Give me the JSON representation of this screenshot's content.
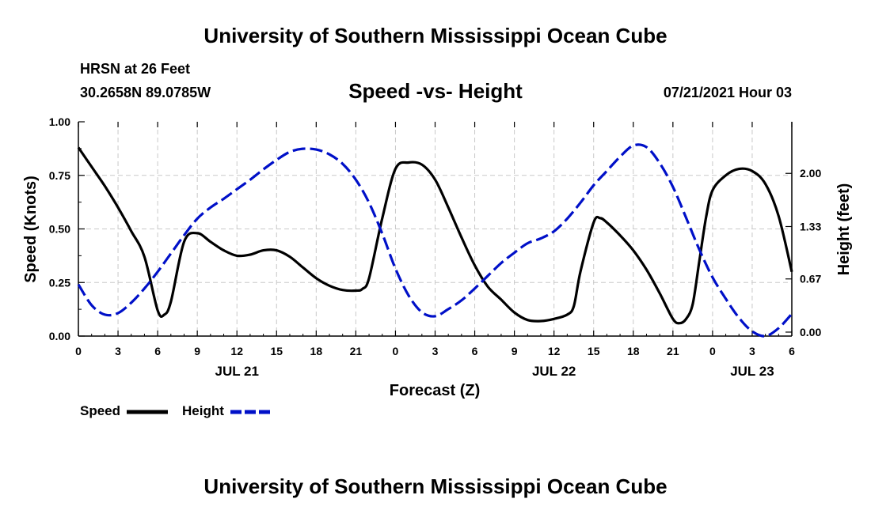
{
  "header": {
    "title": "University of Southern Mississippi Ocean Cube",
    "station": "HRSN at 26 Feet",
    "location": "30.2658N  89.0785W",
    "subtitle": "Speed -vs- Height",
    "datetime": "07/21/2021 Hour 03"
  },
  "footer": {
    "title": "University of Southern Mississippi Ocean Cube"
  },
  "chart_data": {
    "type": "line",
    "title": "Speed -vs- Height",
    "xlabel": "Forecast (Z)",
    "ylabel_left": "Speed (Knots)",
    "ylabel_right": "Height (feet)",
    "x_unit": "hours from 2021-07-21 00Z",
    "xlim": [
      0,
      54
    ],
    "ylim_left": [
      0,
      1.0
    ],
    "ylim_right": [
      -0.05,
      2.65
    ],
    "grid": true,
    "x_ticks": [
      {
        "x": 0,
        "label": "0"
      },
      {
        "x": 3,
        "label": "3"
      },
      {
        "x": 6,
        "label": "6"
      },
      {
        "x": 9,
        "label": "9"
      },
      {
        "x": 12,
        "label": "12"
      },
      {
        "x": 15,
        "label": "15"
      },
      {
        "x": 18,
        "label": "18"
      },
      {
        "x": 21,
        "label": "21"
      },
      {
        "x": 24,
        "label": "0"
      },
      {
        "x": 27,
        "label": "3"
      },
      {
        "x": 30,
        "label": "6"
      },
      {
        "x": 33,
        "label": "9"
      },
      {
        "x": 36,
        "label": "12"
      },
      {
        "x": 39,
        "label": "15"
      },
      {
        "x": 42,
        "label": "18"
      },
      {
        "x": 45,
        "label": "21"
      },
      {
        "x": 48,
        "label": "0"
      },
      {
        "x": 51,
        "label": "3"
      },
      {
        "x": 54,
        "label": "6"
      }
    ],
    "date_labels": [
      {
        "x": 12,
        "label": "JUL 21"
      },
      {
        "x": 36,
        "label": "JUL 22"
      },
      {
        "x": 51,
        "label": "JUL 23"
      }
    ],
    "y_ticks_left": [
      {
        "v": 0.0,
        "label": "0.00"
      },
      {
        "v": 0.25,
        "label": "0.25"
      },
      {
        "v": 0.5,
        "label": "0.50"
      },
      {
        "v": 0.75,
        "label": "0.75"
      },
      {
        "v": 1.0,
        "label": "1.00"
      }
    ],
    "y_ticks_right": [
      {
        "v": 0.0,
        "label": "0.00"
      },
      {
        "v": 0.67,
        "label": "0.67"
      },
      {
        "v": 1.33,
        "label": "1.33"
      },
      {
        "v": 2.0,
        "label": "2.00"
      }
    ],
    "series": [
      {
        "name": "Speed",
        "axis": "left",
        "color": "#000000",
        "dash": "solid",
        "points": [
          [
            0,
            0.88
          ],
          [
            1,
            0.79
          ],
          [
            2,
            0.7
          ],
          [
            3,
            0.6
          ],
          [
            4,
            0.49
          ],
          [
            5,
            0.37
          ],
          [
            6,
            0.12
          ],
          [
            6.5,
            0.1
          ],
          [
            7,
            0.16
          ],
          [
            8,
            0.44
          ],
          [
            9,
            0.48
          ],
          [
            10,
            0.44
          ],
          [
            11,
            0.4
          ],
          [
            12,
            0.375
          ],
          [
            13,
            0.38
          ],
          [
            14,
            0.4
          ],
          [
            15,
            0.4
          ],
          [
            16,
            0.37
          ],
          [
            17,
            0.32
          ],
          [
            18,
            0.27
          ],
          [
            19,
            0.235
          ],
          [
            20,
            0.215
          ],
          [
            21,
            0.212
          ],
          [
            21.5,
            0.22
          ],
          [
            22,
            0.27
          ],
          [
            23,
            0.55
          ],
          [
            24,
            0.78
          ],
          [
            25,
            0.81
          ],
          [
            26,
            0.8
          ],
          [
            27,
            0.73
          ],
          [
            28,
            0.6
          ],
          [
            29,
            0.46
          ],
          [
            30,
            0.33
          ],
          [
            31,
            0.23
          ],
          [
            32,
            0.17
          ],
          [
            33,
            0.11
          ],
          [
            34,
            0.075
          ],
          [
            35,
            0.07
          ],
          [
            36,
            0.08
          ],
          [
            37,
            0.1
          ],
          [
            37.5,
            0.14
          ],
          [
            38,
            0.3
          ],
          [
            39,
            0.53
          ],
          [
            39.5,
            0.55
          ],
          [
            40,
            0.53
          ],
          [
            41,
            0.47
          ],
          [
            42,
            0.4
          ],
          [
            43,
            0.31
          ],
          [
            44,
            0.2
          ],
          [
            45,
            0.08
          ],
          [
            45.5,
            0.06
          ],
          [
            46,
            0.08
          ],
          [
            46.5,
            0.15
          ],
          [
            47,
            0.35
          ],
          [
            47.5,
            0.55
          ],
          [
            48,
            0.68
          ],
          [
            49,
            0.75
          ],
          [
            50,
            0.78
          ],
          [
            51,
            0.77
          ],
          [
            52,
            0.71
          ],
          [
            53,
            0.56
          ],
          [
            54,
            0.3
          ]
        ]
      },
      {
        "name": "Height",
        "axis": "right",
        "color": "#0010c8",
        "dash": "dashed",
        "points": [
          [
            0,
            0.6
          ],
          [
            1,
            0.34
          ],
          [
            2,
            0.22
          ],
          [
            3,
            0.24
          ],
          [
            4,
            0.37
          ],
          [
            5,
            0.55
          ],
          [
            6,
            0.76
          ],
          [
            7,
            0.99
          ],
          [
            8,
            1.22
          ],
          [
            9,
            1.43
          ],
          [
            10,
            1.57
          ],
          [
            11,
            1.68
          ],
          [
            12,
            1.8
          ],
          [
            13,
            1.92
          ],
          [
            14,
            2.05
          ],
          [
            15,
            2.17
          ],
          [
            16,
            2.27
          ],
          [
            17,
            2.31
          ],
          [
            18,
            2.3
          ],
          [
            19,
            2.24
          ],
          [
            20,
            2.12
          ],
          [
            21,
            1.92
          ],
          [
            22,
            1.63
          ],
          [
            23,
            1.24
          ],
          [
            24,
            0.8
          ],
          [
            25,
            0.46
          ],
          [
            26,
            0.25
          ],
          [
            27,
            0.2
          ],
          [
            28,
            0.29
          ],
          [
            29,
            0.4
          ],
          [
            30,
            0.55
          ],
          [
            31,
            0.71
          ],
          [
            32,
            0.87
          ],
          [
            33,
            1.0
          ],
          [
            34,
            1.12
          ],
          [
            35,
            1.18
          ],
          [
            36,
            1.27
          ],
          [
            37,
            1.43
          ],
          [
            38,
            1.63
          ],
          [
            39,
            1.85
          ],
          [
            40,
            2.03
          ],
          [
            41,
            2.21
          ],
          [
            42,
            2.35
          ],
          [
            43,
            2.33
          ],
          [
            44,
            2.13
          ],
          [
            45,
            1.83
          ],
          [
            46,
            1.44
          ],
          [
            47,
            1.04
          ],
          [
            48,
            0.69
          ],
          [
            49,
            0.42
          ],
          [
            50,
            0.18
          ],
          [
            51,
            0.01
          ],
          [
            52,
            -0.05
          ],
          [
            53,
            0.05
          ],
          [
            54,
            0.23
          ]
        ]
      }
    ],
    "legend": {
      "placement": "bottom-left",
      "entries": [
        {
          "label": "Speed",
          "color": "#000000",
          "dash": "solid"
        },
        {
          "label": "Height",
          "color": "#0010c8",
          "dash": "dashed"
        }
      ]
    }
  }
}
